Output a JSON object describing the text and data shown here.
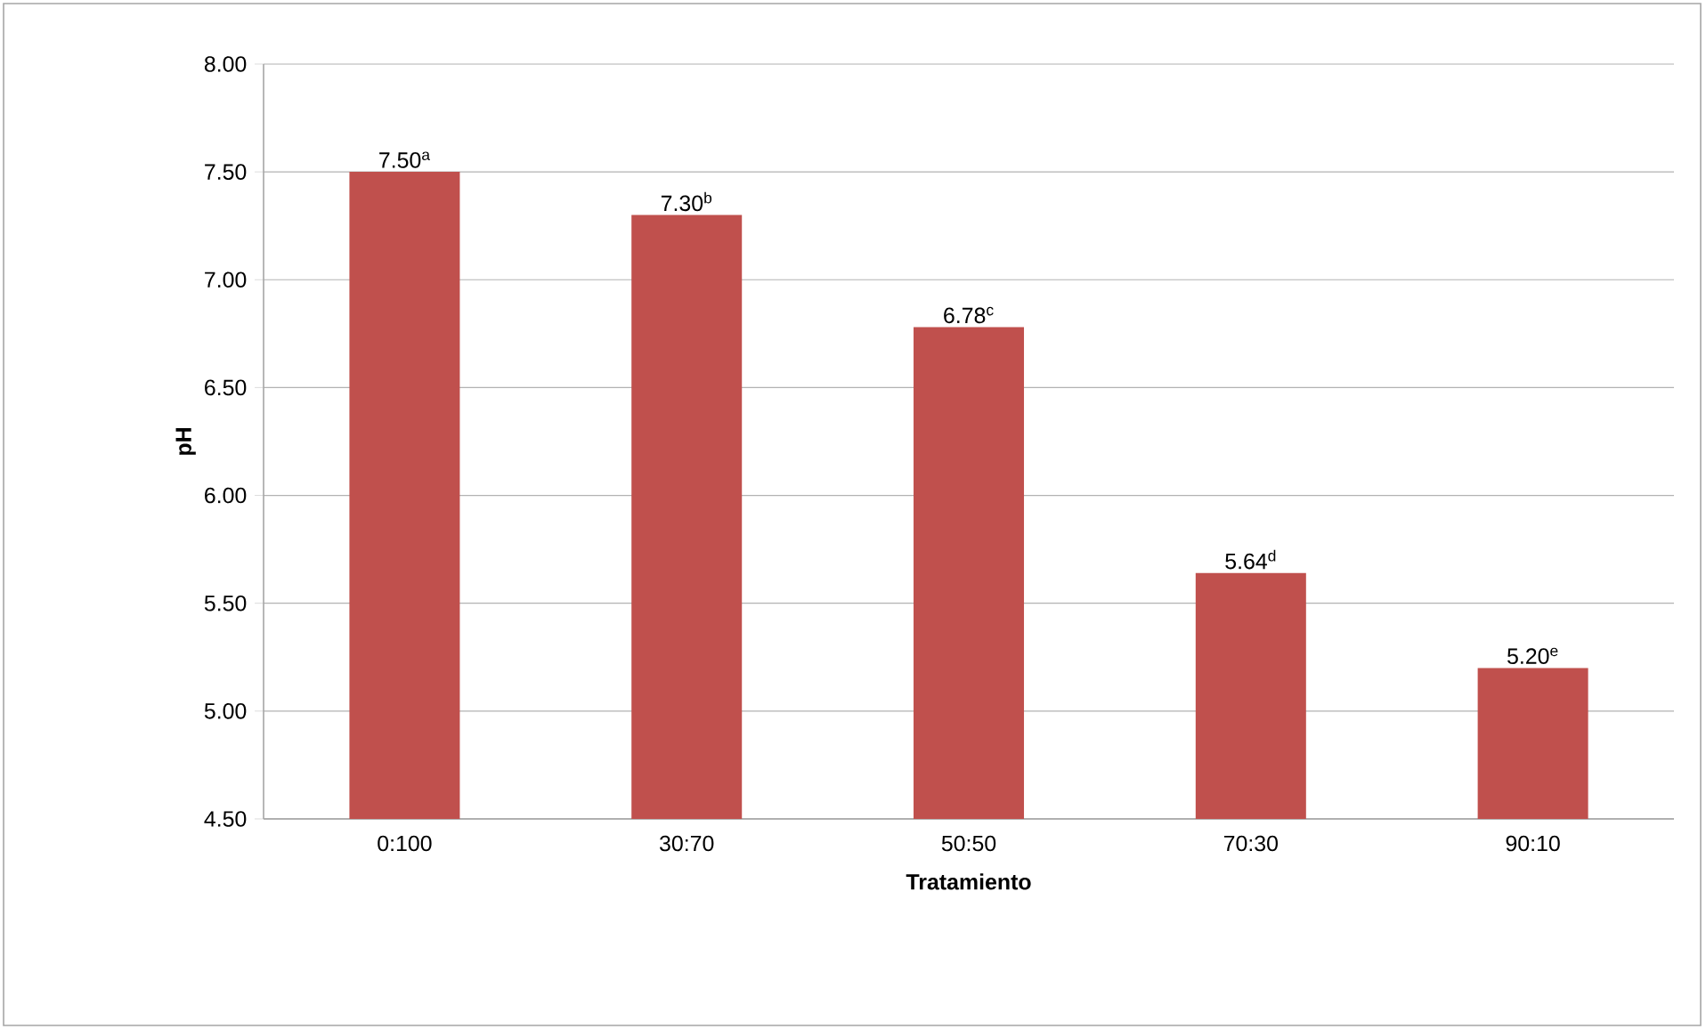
{
  "chart_data": {
    "type": "bar",
    "xlabel": "Tratamiento",
    "ylabel": "pH",
    "categories": [
      "0:100",
      "30:70",
      "50:50",
      "70:30",
      "90:10"
    ],
    "values": [
      7.5,
      7.3,
      6.78,
      5.64,
      5.2
    ],
    "value_labels": [
      "7.50$^{a}$",
      "7.30$^{b}$",
      "6.78$^{c}$",
      "5.64$^{d}$",
      "5.20$^{e}$"
    ],
    "color": "#c0504d",
    "ylim": [
      4.5,
      8.0
    ],
    "yticks": [
      {
        "value": 4.5,
        "label": "4.50"
      },
      {
        "value": 5.0,
        "label": "5.00"
      },
      {
        "value": 5.5,
        "label": "5.50"
      },
      {
        "value": 6.0,
        "label": "6.00"
      },
      {
        "value": 6.5,
        "label": "6.50"
      },
      {
        "value": 7.0,
        "label": "7.00"
      },
      {
        "value": 7.5,
        "label": "7.50"
      },
      {
        "value": 8.0,
        "label": "8.00"
      }
    ],
    "grid": "y"
  }
}
